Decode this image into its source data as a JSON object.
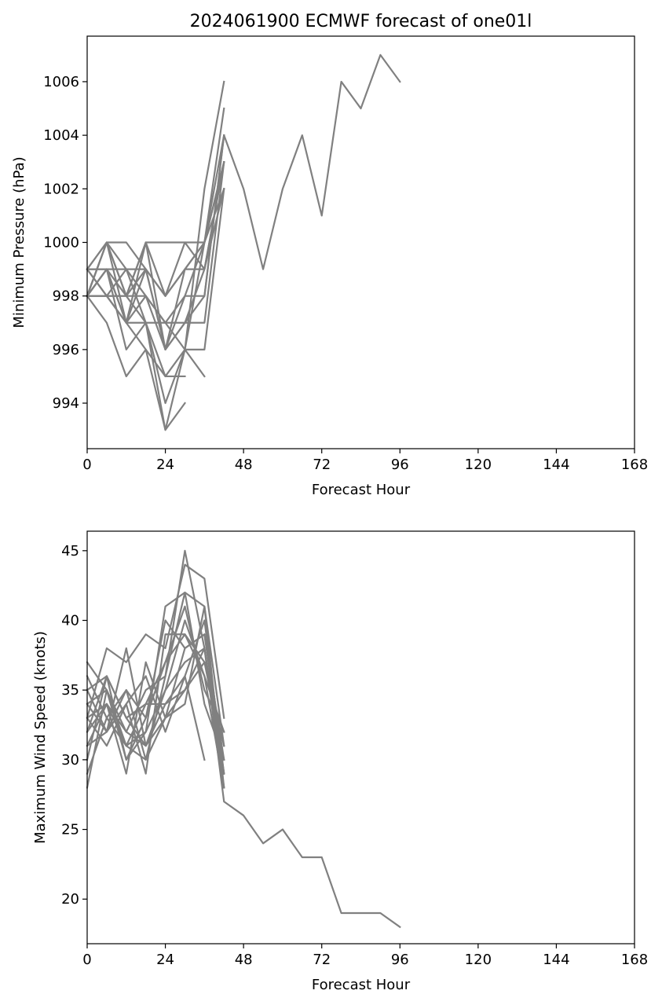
{
  "chart_data": [
    {
      "type": "line",
      "title": "2024061900 ECMWF forecast of one01l",
      "xlabel": "Forecast Hour",
      "ylabel": "Minimum Pressure (hPa)",
      "xlim": [
        0,
        168
      ],
      "ylim": [
        992.3,
        1007.7
      ],
      "xticks": [
        0,
        24,
        48,
        72,
        96,
        120,
        144,
        168
      ],
      "yticks": [
        994,
        996,
        998,
        1000,
        1002,
        1004,
        1006
      ],
      "line_color": "#808080",
      "grid": false,
      "series": [
        {
          "x": [
            0,
            6,
            12,
            18,
            24,
            30,
            36,
            42,
            48,
            54,
            60,
            66,
            72,
            78,
            84,
            90,
            96
          ],
          "y": [
            998,
            1000,
            1000,
            999,
            998,
            999,
            1000,
            1004,
            1002,
            999,
            1002,
            1004,
            1001,
            1006,
            1005,
            1007,
            1006
          ]
        },
        {
          "x": [
            0,
            6,
            12,
            18,
            24,
            30,
            36,
            42
          ],
          "y": [
            998,
            997,
            995,
            996,
            993,
            996,
            1002,
            1006
          ]
        },
        {
          "x": [
            0,
            6,
            12,
            18,
            24,
            30,
            36,
            42
          ],
          "y": [
            998,
            999,
            996,
            997,
            994,
            996,
            1000,
            1005
          ]
        },
        {
          "x": [
            0,
            6,
            12,
            18,
            24,
            30
          ],
          "y": [
            998,
            998,
            997,
            997,
            995,
            995
          ]
        },
        {
          "x": [
            0,
            6,
            12,
            18,
            24,
            30
          ],
          "y": [
            999,
            1000,
            998,
            997,
            993,
            994
          ]
        },
        {
          "x": [
            0,
            6,
            12,
            18,
            24,
            30,
            36,
            42
          ],
          "y": [
            999,
            999,
            999,
            999,
            998,
            1000,
            1000,
            1003
          ]
        },
        {
          "x": [
            0,
            6,
            12,
            18,
            24,
            30,
            36,
            42
          ],
          "y": [
            998,
            1000,
            997,
            1000,
            996,
            999,
            999,
            1003
          ]
        },
        {
          "x": [
            0,
            6,
            12,
            18,
            24,
            30,
            36
          ],
          "y": [
            998,
            998,
            999,
            997,
            997,
            996,
            995
          ]
        },
        {
          "x": [
            0,
            6,
            12,
            18,
            24,
            30,
            36,
            42
          ],
          "y": [
            999,
            1000,
            998,
            1000,
            1000,
            1000,
            999,
            1002
          ]
        },
        {
          "x": [
            0,
            6,
            12,
            18,
            24,
            30,
            36,
            42
          ],
          "y": [
            998,
            999,
            997,
            999,
            996,
            997,
            998,
            1004
          ]
        },
        {
          "x": [
            0,
            6,
            12,
            18,
            24,
            30,
            36,
            42
          ],
          "y": [
            999,
            998,
            998,
            998,
            997,
            998,
            1000,
            1003
          ]
        },
        {
          "x": [
            0,
            6,
            12,
            18,
            24,
            30,
            36,
            42
          ],
          "y": [
            998,
            999,
            997,
            996,
            995,
            996,
            996,
            1002
          ]
        },
        {
          "x": [
            0,
            6,
            12,
            18,
            24,
            30,
            36,
            42
          ],
          "y": [
            999,
            998,
            997,
            998,
            997,
            997,
            997,
            1003
          ]
        },
        {
          "x": [
            0,
            6,
            12,
            18,
            24,
            30,
            36,
            42
          ],
          "y": [
            998,
            998,
            998,
            999,
            996,
            998,
            998,
            1004
          ]
        },
        {
          "x": [
            0,
            6,
            12,
            18,
            24,
            30,
            36,
            42
          ],
          "y": [
            999,
            999,
            998,
            1000,
            998,
            999,
            1000,
            1002
          ]
        },
        {
          "x": [
            0,
            6,
            12,
            18,
            24,
            30,
            36,
            42
          ],
          "y": [
            998,
            1000,
            999,
            998,
            996,
            997,
            999,
            1003
          ]
        }
      ]
    },
    {
      "type": "line",
      "title": "",
      "xlabel": "Forecast Hour",
      "ylabel": "Maximum Wind Speed (knots)",
      "xlim": [
        0,
        168
      ],
      "ylim": [
        16.8,
        46.4
      ],
      "xticks": [
        0,
        24,
        48,
        72,
        96,
        120,
        144,
        168
      ],
      "yticks": [
        20,
        25,
        30,
        35,
        40,
        45
      ],
      "line_color": "#808080",
      "grid": false,
      "series": [
        {
          "x": [
            0,
            6,
            12,
            18,
            24,
            30,
            36,
            42,
            48,
            54,
            60,
            66,
            72,
            78,
            84,
            90,
            96
          ],
          "y": [
            28,
            35,
            32,
            31,
            33,
            35,
            38,
            27,
            26,
            24,
            25,
            23,
            23,
            19,
            19,
            19,
            18
          ]
        },
        {
          "x": [
            0,
            6,
            12,
            18,
            24,
            30,
            36,
            42
          ],
          "y": [
            37,
            35,
            31,
            30,
            36,
            45,
            38,
            29
          ]
        },
        {
          "x": [
            0,
            6,
            12,
            18,
            24,
            30,
            36,
            42
          ],
          "y": [
            33,
            38,
            37,
            39,
            38,
            44,
            43,
            33
          ]
        },
        {
          "x": [
            0,
            6,
            12,
            18,
            24,
            30,
            36,
            42
          ],
          "y": [
            30,
            36,
            30,
            32,
            41,
            42,
            41,
            31
          ]
        },
        {
          "x": [
            0,
            6,
            12,
            18,
            24,
            30,
            36,
            42
          ],
          "y": [
            34,
            32,
            38,
            31,
            35,
            40,
            36,
            28
          ]
        },
        {
          "x": [
            0,
            6,
            12,
            18,
            24,
            30,
            36,
            42
          ],
          "y": [
            32,
            34,
            29,
            37,
            33,
            38,
            39,
            30
          ]
        },
        {
          "x": [
            0,
            6,
            12,
            18,
            24,
            30,
            36,
            42
          ],
          "y": [
            29,
            33,
            35,
            33,
            37,
            41,
            35,
            32
          ]
        },
        {
          "x": [
            0,
            6,
            12,
            18,
            24,
            30,
            36,
            42
          ],
          "y": [
            35,
            36,
            33,
            34,
            34,
            36,
            40,
            29
          ]
        },
        {
          "x": [
            0,
            6,
            12,
            18,
            24,
            30,
            36,
            42
          ],
          "y": [
            33,
            31,
            34,
            29,
            39,
            39,
            37,
            31
          ]
        },
        {
          "x": [
            0,
            6,
            12,
            18,
            24,
            30,
            36,
            42
          ],
          "y": [
            31,
            34,
            32,
            35,
            36,
            42,
            34,
            30
          ]
        },
        {
          "x": [
            0,
            6,
            12,
            18,
            24,
            30,
            36,
            42
          ],
          "y": [
            36,
            33,
            31,
            32,
            35,
            37,
            38,
            28
          ]
        },
        {
          "x": [
            0,
            6,
            12,
            18,
            24,
            30,
            36,
            42
          ],
          "y": [
            34,
            35,
            30,
            33,
            40,
            38,
            39,
            29
          ]
        },
        {
          "x": [
            0,
            6,
            12,
            18,
            24,
            30,
            36,
            42
          ],
          "y": [
            32,
            36,
            33,
            31,
            34,
            35,
            37,
            30
          ]
        },
        {
          "x": [
            0,
            6,
            12,
            18,
            24,
            30,
            36
          ],
          "y": [
            35,
            32,
            34,
            36,
            32,
            36,
            30
          ]
        },
        {
          "x": [
            0,
            6,
            12,
            18,
            24,
            30,
            36,
            42
          ],
          "y": [
            33,
            34,
            31,
            34,
            37,
            39,
            36,
            32
          ]
        },
        {
          "x": [
            0,
            6,
            12,
            18,
            24,
            30,
            36,
            42
          ],
          "y": [
            31,
            32,
            35,
            30,
            33,
            34,
            41,
            28
          ]
        }
      ]
    }
  ]
}
